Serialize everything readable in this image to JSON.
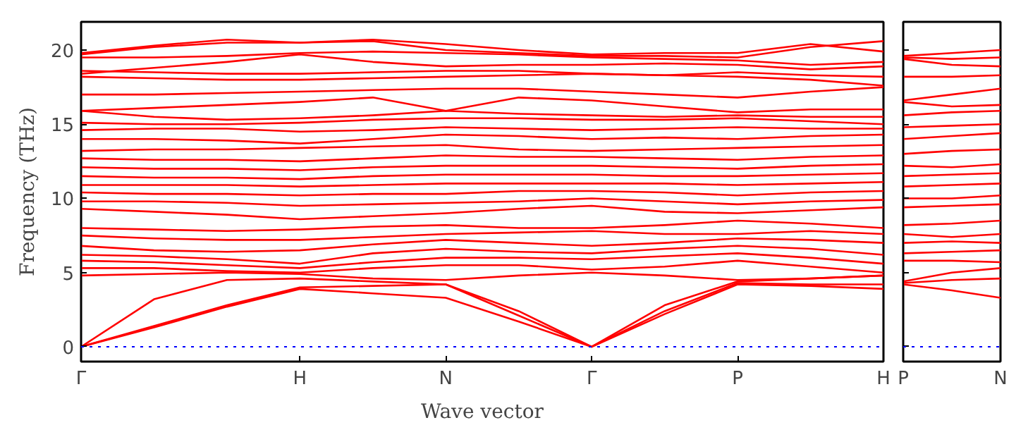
{
  "chart_data": [
    {
      "type": "line",
      "xlabel": "Wave vector",
      "ylabel": "Frequency (THz)",
      "ylim": [
        -1,
        21.9
      ],
      "categories": [
        "Γ",
        null,
        null,
        "H",
        null,
        "N",
        null,
        "Γ",
        null,
        "P",
        null,
        "H"
      ],
      "yticks": [
        0,
        5,
        10,
        15,
        20
      ],
      "grid": false,
      "marker": "none",
      "line_style": "solid",
      "ref_lines": [
        {
          "axis": "y",
          "value": 0,
          "color": "#0000ff",
          "line_style": "dotted"
        }
      ],
      "series": [
        {
          "color": "#ff0000",
          "values": [
            0,
            1.3,
            2.7,
            3.9,
            3.6,
            3.3,
            1.7,
            0,
            2.2,
            4.2,
            4.1,
            3.9
          ]
        },
        {
          "color": "#ff0000",
          "values": [
            0,
            1.4,
            2.8,
            4.0,
            4.1,
            4.2,
            2.1,
            0,
            2.4,
            4.3,
            4.2,
            4.2
          ]
        },
        {
          "color": "#ff0000",
          "values": [
            0,
            3.2,
            4.5,
            4.6,
            4.4,
            4.2,
            2.4,
            0,
            2.8,
            4.4,
            4.6,
            4.8
          ]
        },
        {
          "color": "#ff0000",
          "values": [
            4.8,
            4.9,
            5.0,
            4.9,
            4.6,
            4.5,
            4.8,
            5.0,
            4.8,
            4.5,
            4.6,
            4.8
          ]
        },
        {
          "color": "#ff0000",
          "values": [
            5.3,
            5.3,
            5.1,
            5.0,
            5.3,
            5.5,
            5.5,
            5.2,
            5.4,
            5.8,
            5.4,
            5.0
          ]
        },
        {
          "color": "#ff0000",
          "values": [
            5.8,
            5.7,
            5.5,
            5.3,
            5.7,
            6.0,
            6.0,
            5.9,
            6.1,
            6.3,
            6.0,
            5.6
          ]
        },
        {
          "color": "#ff0000",
          "values": [
            6.2,
            6.1,
            5.9,
            5.6,
            6.3,
            6.6,
            6.4,
            6.3,
            6.6,
            6.8,
            6.6,
            6.2
          ]
        },
        {
          "color": "#ff0000",
          "values": [
            6.8,
            6.5,
            6.4,
            6.5,
            6.9,
            7.2,
            7.0,
            6.8,
            7.0,
            7.3,
            7.2,
            7.0
          ]
        },
        {
          "color": "#ff0000",
          "values": [
            7.5,
            7.3,
            7.2,
            7.2,
            7.4,
            7.6,
            7.7,
            7.8,
            7.6,
            7.6,
            7.8,
            7.6
          ]
        },
        {
          "color": "#ff0000",
          "values": [
            8.0,
            7.9,
            7.8,
            7.9,
            8.1,
            8.2,
            8.0,
            8.0,
            8.2,
            8.5,
            8.3,
            8.0
          ]
        },
        {
          "color": "#ff0000",
          "values": [
            9.3,
            9.1,
            8.9,
            8.6,
            8.8,
            9.0,
            9.3,
            9.5,
            9.1,
            9.0,
            9.2,
            9.4
          ]
        },
        {
          "color": "#ff0000",
          "values": [
            9.8,
            9.8,
            9.7,
            9.5,
            9.6,
            9.7,
            9.8,
            10.0,
            9.8,
            9.6,
            9.8,
            9.9
          ]
        },
        {
          "color": "#ff0000",
          "values": [
            10.4,
            10.3,
            10.3,
            10.2,
            10.3,
            10.3,
            10.5,
            10.5,
            10.4,
            10.2,
            10.4,
            10.5
          ]
        },
        {
          "color": "#ff0000",
          "values": [
            10.9,
            10.9,
            10.9,
            10.8,
            10.9,
            11.0,
            11.0,
            11.0,
            11.0,
            10.9,
            11.0,
            11.1
          ]
        },
        {
          "color": "#ff0000",
          "values": [
            11.5,
            11.4,
            11.4,
            11.3,
            11.5,
            11.6,
            11.6,
            11.6,
            11.5,
            11.5,
            11.6,
            11.7
          ]
        },
        {
          "color": "#ff0000",
          "values": [
            12.1,
            12.0,
            12.0,
            11.9,
            12.1,
            12.2,
            12.2,
            12.2,
            12.1,
            12.0,
            12.2,
            12.3
          ]
        },
        {
          "color": "#ff0000",
          "values": [
            12.7,
            12.6,
            12.6,
            12.5,
            12.7,
            12.9,
            12.8,
            12.8,
            12.7,
            12.6,
            12.8,
            12.9
          ]
        },
        {
          "color": "#ff0000",
          "values": [
            13.2,
            13.3,
            13.3,
            13.4,
            13.5,
            13.6,
            13.3,
            13.2,
            13.3,
            13.4,
            13.5,
            13.6
          ]
        },
        {
          "color": "#ff0000",
          "values": [
            14.0,
            14.0,
            13.9,
            13.7,
            14.0,
            14.3,
            14.2,
            14.0,
            14.1,
            14.0,
            14.2,
            14.3
          ]
        },
        {
          "color": "#ff0000",
          "values": [
            14.6,
            14.7,
            14.7,
            14.5,
            14.6,
            14.8,
            14.7,
            14.6,
            14.7,
            14.8,
            14.7,
            14.7
          ]
        },
        {
          "color": "#ff0000",
          "values": [
            15.1,
            15.0,
            15.0,
            15.1,
            15.3,
            15.4,
            15.4,
            15.3,
            15.3,
            15.4,
            15.2,
            15.0
          ]
        },
        {
          "color": "#ff0000",
          "values": [
            15.9,
            15.5,
            15.3,
            15.4,
            15.6,
            15.9,
            15.7,
            15.6,
            15.5,
            15.6,
            15.5,
            15.5
          ]
        },
        {
          "color": "#ff0000",
          "values": [
            15.9,
            16.1,
            16.3,
            16.5,
            16.8,
            15.9,
            16.8,
            16.6,
            16.2,
            15.8,
            16.0,
            16.0
          ]
        },
        {
          "color": "#ff0000",
          "values": [
            17.0,
            17.0,
            17.1,
            17.2,
            17.3,
            17.4,
            17.4,
            17.2,
            17.0,
            16.8,
            17.2,
            17.5
          ]
        },
        {
          "color": "#ff0000",
          "values": [
            18.2,
            18.1,
            18.0,
            18.0,
            18.1,
            18.2,
            18.3,
            18.4,
            18.3,
            18.2,
            18.0,
            17.6
          ]
        },
        {
          "color": "#ff0000",
          "values": [
            18.6,
            18.5,
            18.4,
            18.4,
            18.5,
            18.6,
            18.6,
            18.4,
            18.3,
            18.5,
            18.3,
            18.2
          ]
        },
        {
          "color": "#ff0000",
          "values": [
            18.4,
            18.8,
            19.2,
            19.7,
            19.2,
            18.9,
            19.0,
            19.0,
            19.1,
            19.0,
            18.7,
            18.9
          ]
        },
        {
          "color": "#ff0000",
          "values": [
            19.5,
            19.5,
            19.6,
            19.8,
            19.9,
            19.8,
            19.7,
            19.5,
            19.4,
            19.3,
            19.0,
            19.2
          ]
        },
        {
          "color": "#ff0000",
          "values": [
            19.7,
            20.2,
            20.5,
            20.5,
            20.6,
            20.0,
            19.8,
            19.6,
            19.6,
            19.5,
            20.2,
            20.6
          ]
        },
        {
          "color": "#ff0000",
          "values": [
            19.8,
            20.3,
            20.7,
            20.5,
            20.7,
            20.4,
            20.0,
            19.7,
            19.8,
            19.8,
            20.4,
            19.9
          ]
        }
      ]
    },
    {
      "type": "line",
      "ylim": [
        -1,
        21.9
      ],
      "categories": [
        "P",
        null,
        "N"
      ],
      "yticks": [
        0,
        5,
        10,
        15,
        20
      ],
      "tick_labels": "x",
      "grid": false,
      "marker": "none",
      "line_style": "solid",
      "ref_lines": [
        {
          "axis": "y",
          "value": 0,
          "color": "#0000ff",
          "line_style": "dotted"
        }
      ],
      "series": [
        {
          "color": "#ff0000",
          "values": [
            4.2,
            3.8,
            3.3
          ]
        },
        {
          "color": "#ff0000",
          "values": [
            4.3,
            4.5,
            4.6
          ]
        },
        {
          "color": "#ff0000",
          "values": [
            4.4,
            5.0,
            5.3
          ]
        },
        {
          "color": "#ff0000",
          "values": [
            5.8,
            5.8,
            5.7
          ]
        },
        {
          "color": "#ff0000",
          "values": [
            6.3,
            6.4,
            6.5
          ]
        },
        {
          "color": "#ff0000",
          "values": [
            7.0,
            7.1,
            7.0
          ]
        },
        {
          "color": "#ff0000",
          "values": [
            7.6,
            7.4,
            7.6
          ]
        },
        {
          "color": "#ff0000",
          "values": [
            8.2,
            8.3,
            8.5
          ]
        },
        {
          "color": "#ff0000",
          "values": [
            9.4,
            9.5,
            9.6
          ]
        },
        {
          "color": "#ff0000",
          "values": [
            10.0,
            10.0,
            10.2
          ]
        },
        {
          "color": "#ff0000",
          "values": [
            10.8,
            10.9,
            11.0
          ]
        },
        {
          "color": "#ff0000",
          "values": [
            11.5,
            11.6,
            11.7
          ]
        },
        {
          "color": "#ff0000",
          "values": [
            12.2,
            12.1,
            12.3
          ]
        },
        {
          "color": "#ff0000",
          "values": [
            13.0,
            13.2,
            13.3
          ]
        },
        {
          "color": "#ff0000",
          "values": [
            14.0,
            14.2,
            14.4
          ]
        },
        {
          "color": "#ff0000",
          "values": [
            14.8,
            14.9,
            15.0
          ]
        },
        {
          "color": "#ff0000",
          "values": [
            15.6,
            15.8,
            15.9
          ]
        },
        {
          "color": "#ff0000",
          "values": [
            16.6,
            17.0,
            17.4
          ]
        },
        {
          "color": "#ff0000",
          "values": [
            16.5,
            16.2,
            16.3
          ]
        },
        {
          "color": "#ff0000",
          "values": [
            18.2,
            18.2,
            18.3
          ]
        },
        {
          "color": "#ff0000",
          "values": [
            19.4,
            19.0,
            18.9
          ]
        },
        {
          "color": "#ff0000",
          "values": [
            19.6,
            19.8,
            20.0
          ]
        },
        {
          "color": "#ff0000",
          "values": [
            19.5,
            19.4,
            19.5
          ]
        }
      ]
    }
  ]
}
